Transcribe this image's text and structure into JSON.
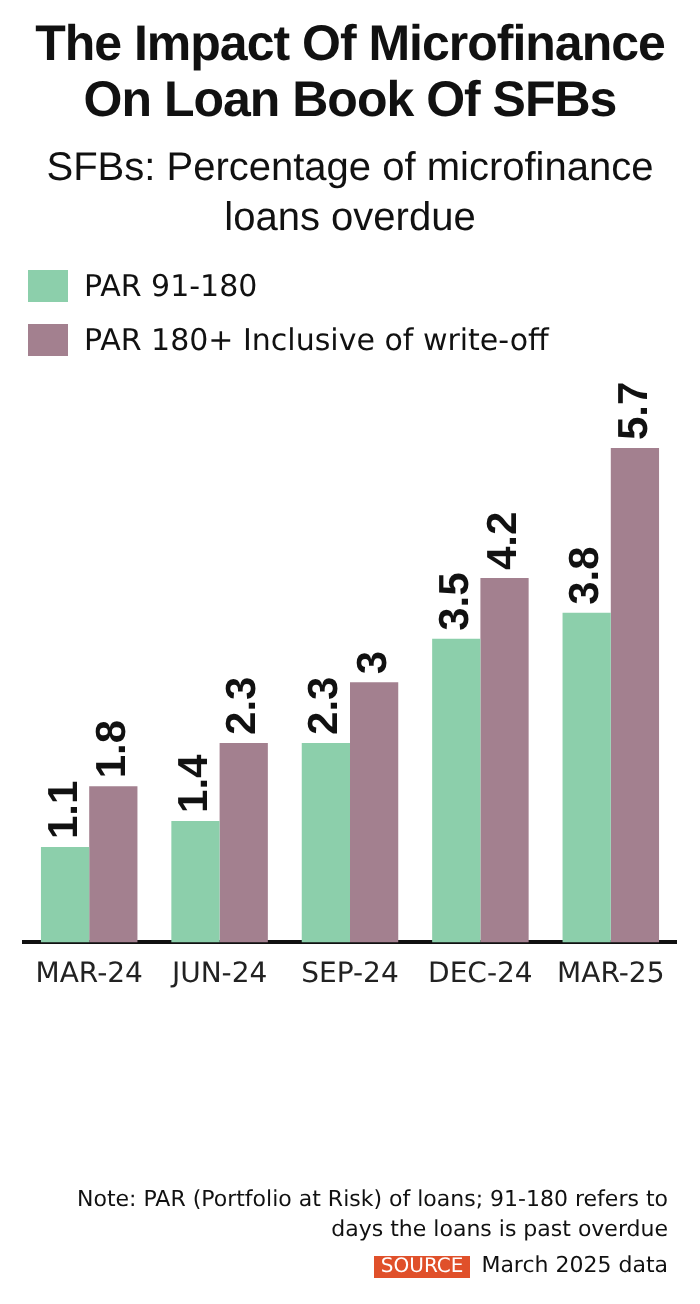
{
  "chart_data": {
    "type": "bar",
    "title": "The Impact Of Microfinance On Loan Book Of SFBs",
    "subtitle": "SFBs: Percentage of microfinance loans overdue",
    "categories": [
      "MAR-24",
      "JUN-24",
      "SEP-24",
      "DEC-24",
      "MAR-25"
    ],
    "series": [
      {
        "name": "PAR 91-180",
        "color": "#8ccfab",
        "values": [
          1.1,
          1.4,
          2.3,
          3.5,
          3.8
        ]
      },
      {
        "name": "PAR 180+ Inclusive of write-off",
        "color": "#a3808f",
        "values": [
          1.8,
          2.3,
          3,
          4.2,
          5.7
        ]
      }
    ],
    "ylim": [
      0,
      5.7
    ],
    "tick_labels": "x",
    "data_labels": true,
    "legend": "top left",
    "grid": false,
    "annotations": [
      "Note: PAR (Portfolio at Risk) of loans; 91-180 refers to days the loans is past overdue",
      "SOURCE",
      "March 2025 data"
    ]
  }
}
